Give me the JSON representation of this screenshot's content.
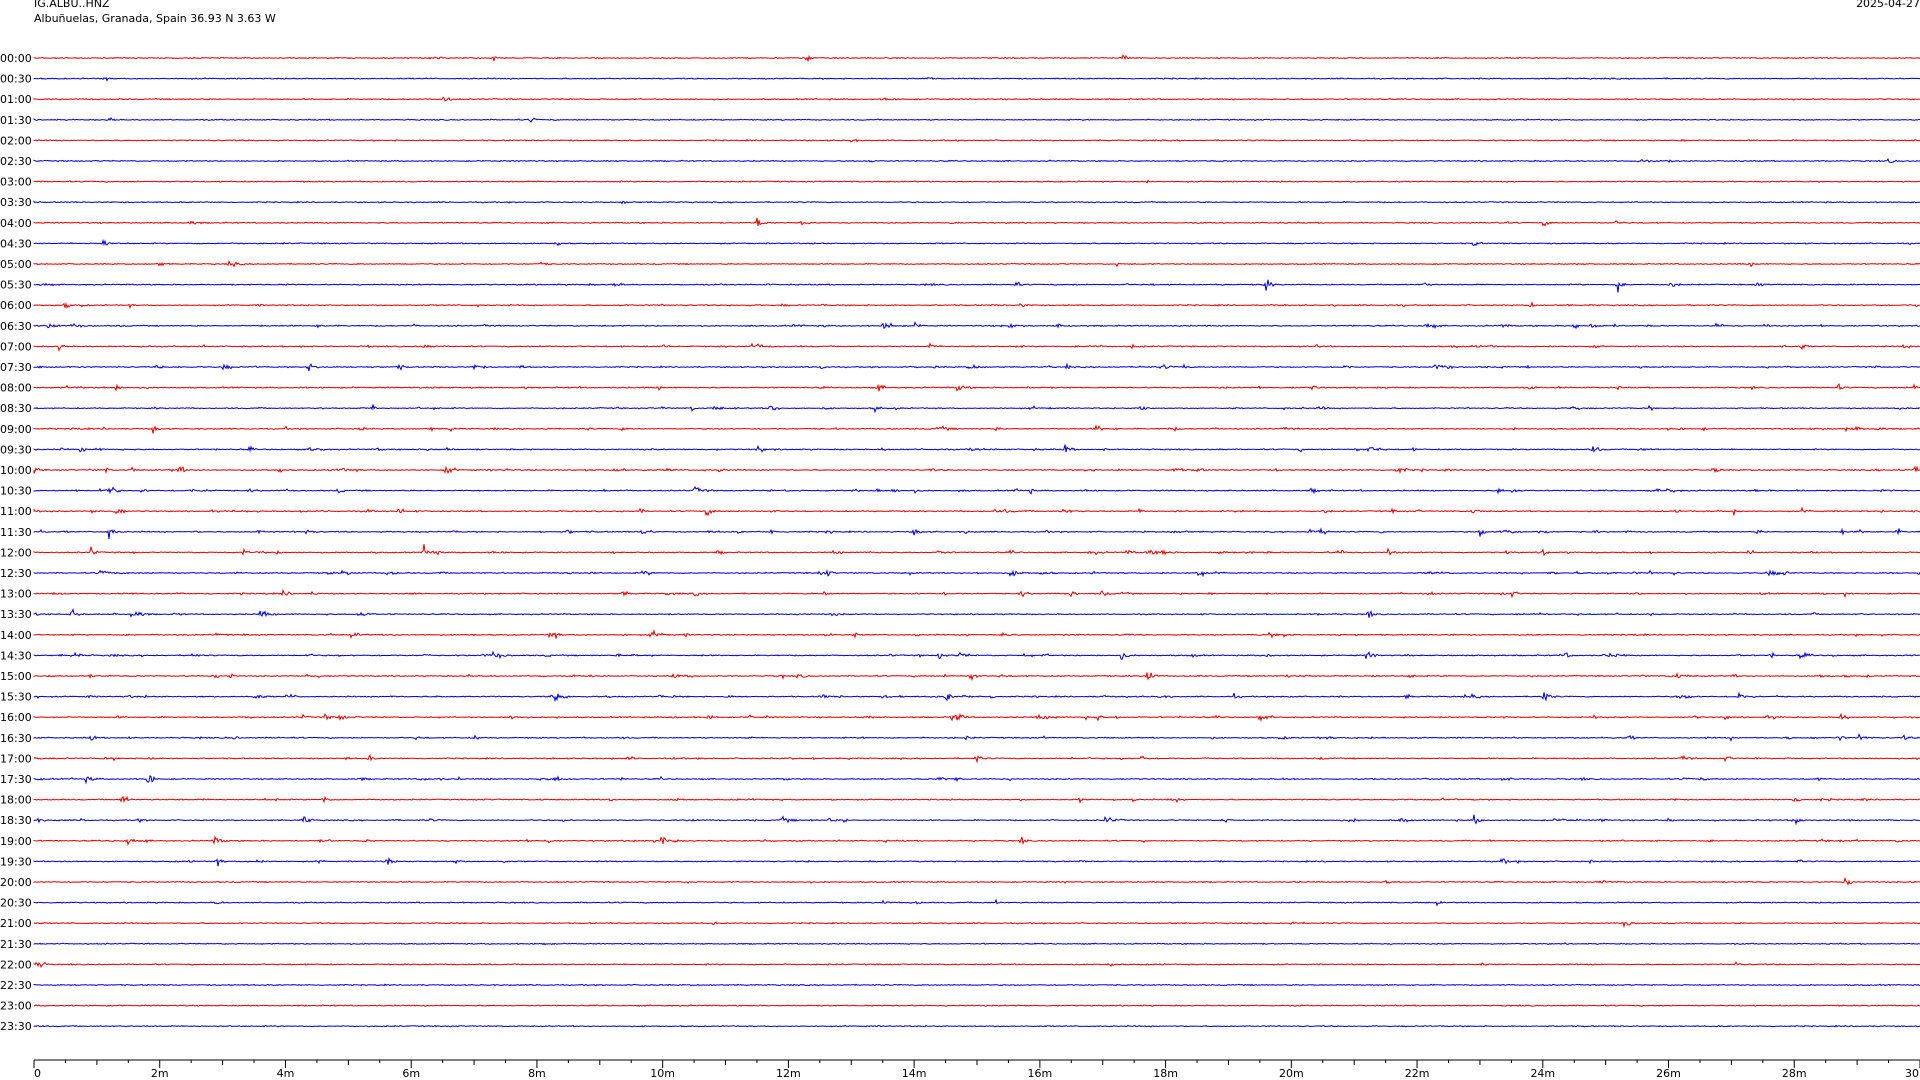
{
  "header": {
    "station_code": "IG.ALBU..HNZ",
    "location": "Albuñuelas, Granada, Spain  36.93 N 3.63 W",
    "date": "2025-04-27"
  },
  "colors": {
    "red": "#e60000",
    "blue": "#0000d2",
    "axis": "#000000"
  },
  "chart_data": {
    "type": "helicorder",
    "row_labels": [
      "00:00",
      "00:30",
      "01:00",
      "01:30",
      "02:00",
      "02:30",
      "03:00",
      "03:30",
      "04:00",
      "04:30",
      "05:00",
      "05:30",
      "06:00",
      "06:30",
      "07:00",
      "07:30",
      "08:00",
      "08:30",
      "09:00",
      "09:30",
      "10:00",
      "10:30",
      "11:00",
      "11:30",
      "12:00",
      "12:30",
      "13:00",
      "13:30",
      "14:00",
      "14:30",
      "15:00",
      "15:30",
      "16:00",
      "16:30",
      "17:00",
      "17:30",
      "18:00",
      "18:30",
      "19:00",
      "19:30",
      "20:00",
      "20:30",
      "21:00",
      "21:30",
      "22:00",
      "22:30",
      "23:00",
      "23:30"
    ],
    "row_colors": [
      "red",
      "blue"
    ],
    "xlim": [
      0,
      30
    ],
    "x_tick_labels": [
      "0",
      "2m",
      "4m",
      "6m",
      "8m",
      "10m",
      "12m",
      "14m",
      "16m",
      "18m",
      "20m",
      "22m",
      "24m",
      "26m",
      "28m",
      "30"
    ],
    "activity": [
      0.1,
      0.1,
      0.1,
      0.1,
      0.1,
      0.1,
      0.1,
      0.1,
      0.2,
      0.25,
      0.25,
      0.35,
      0.5,
      0.6,
      0.6,
      0.65,
      0.65,
      0.7,
      0.7,
      0.7,
      0.75,
      0.8,
      0.8,
      0.8,
      0.75,
      0.7,
      0.65,
      0.6,
      0.65,
      0.7,
      0.8,
      0.8,
      0.75,
      0.65,
      0.6,
      0.6,
      0.6,
      0.65,
      0.65,
      0.5,
      0.3,
      0.2,
      0.15,
      0.1,
      0.1,
      0.08,
      0.05,
      0.05
    ],
    "events": [
      {
        "row": 0,
        "t": 17.3,
        "amp": 0.9
      },
      {
        "row": 0,
        "t": 6.4,
        "amp": 0.5
      },
      {
        "row": 0,
        "t": 7.3,
        "amp": 0.5
      },
      {
        "row": 0,
        "t": 12.3,
        "amp": 0.6
      },
      {
        "row": 1,
        "t": 1.1,
        "amp": 0.5
      },
      {
        "row": 1,
        "t": 14.2,
        "amp": 0.4
      },
      {
        "row": 2,
        "t": 6.5,
        "amp": 0.9
      },
      {
        "row": 3,
        "t": 1.2,
        "amp": 0.6
      },
      {
        "row": 3,
        "t": 7.9,
        "amp": 0.6
      },
      {
        "row": 4,
        "t": 13.0,
        "amp": 0.5
      },
      {
        "row": 5,
        "t": 13.3,
        "amp": 0.4
      },
      {
        "row": 5,
        "t": 26.0,
        "amp": 0.3
      },
      {
        "row": 6,
        "t": 17.7,
        "amp": 0.3
      },
      {
        "row": 8,
        "t": 11.5,
        "amp": 1.0
      },
      {
        "row": 8,
        "t": 12.2,
        "amp": 0.7
      },
      {
        "row": 8,
        "t": 14.6,
        "amp": 0.5
      },
      {
        "row": 9,
        "t": 1.1,
        "amp": 0.9
      },
      {
        "row": 9,
        "t": 22.9,
        "amp": 0.7
      },
      {
        "row": 10,
        "t": 8.1,
        "amp": 0.5
      },
      {
        "row": 10,
        "t": 27.3,
        "amp": 0.4
      },
      {
        "row": 11,
        "t": 19.6,
        "amp": 1.0
      },
      {
        "row": 11,
        "t": 25.2,
        "amp": 1.2
      },
      {
        "row": 11,
        "t": 15.6,
        "amp": 0.6
      },
      {
        "row": 11,
        "t": 27.4,
        "amp": 0.6
      },
      {
        "row": 12,
        "t": 0.5,
        "amp": 0.6
      },
      {
        "row": 12,
        "t": 23.8,
        "amp": 0.6
      },
      {
        "row": 13,
        "t": 15.5,
        "amp": 0.8
      },
      {
        "row": 13,
        "t": 13.6,
        "amp": 0.7
      },
      {
        "row": 13,
        "t": 24.5,
        "amp": 0.7
      },
      {
        "row": 14,
        "t": 0.4,
        "amp": 0.7
      },
      {
        "row": 14,
        "t": 11.5,
        "amp": 0.6
      },
      {
        "row": 14,
        "t": 28.1,
        "amp": 0.6
      },
      {
        "row": 15,
        "t": 12.5,
        "amp": 0.8
      },
      {
        "row": 15,
        "t": 5.8,
        "amp": 0.6
      },
      {
        "row": 16,
        "t": 29.9,
        "amp": 0.6
      },
      {
        "row": 16,
        "t": 1.3,
        "amp": 0.5
      },
      {
        "row": 17,
        "t": 11.7,
        "amp": 1.0
      },
      {
        "row": 17,
        "t": 17.6,
        "amp": 1.0
      },
      {
        "row": 17,
        "t": 5.4,
        "amp": 0.7
      },
      {
        "row": 18,
        "t": 1.9,
        "amp": 0.7
      },
      {
        "row": 18,
        "t": 6.6,
        "amp": 0.6
      },
      {
        "row": 19,
        "t": 4.4,
        "amp": 0.9
      },
      {
        "row": 19,
        "t": 16.4,
        "amp": 0.9
      },
      {
        "row": 19,
        "t": 11.5,
        "amp": 0.8
      },
      {
        "row": 20,
        "t": 2.3,
        "amp": 0.8
      },
      {
        "row": 20,
        "t": 26.7,
        "amp": 0.8
      },
      {
        "row": 20,
        "t": 29.9,
        "amp": 0.6
      },
      {
        "row": 21,
        "t": 1.2,
        "amp": 1.4
      },
      {
        "row": 21,
        "t": 1.7,
        "amp": 0.6
      },
      {
        "row": 22,
        "t": 1.3,
        "amp": 1.3
      },
      {
        "row": 22,
        "t": 5.8,
        "amp": 0.8
      },
      {
        "row": 23,
        "t": 1.2,
        "amp": 1.2
      },
      {
        "row": 23,
        "t": 23.0,
        "amp": 0.8
      },
      {
        "row": 24,
        "t": 6.2,
        "amp": 1.2
      },
      {
        "row": 24,
        "t": 0.9,
        "amp": 0.8
      },
      {
        "row": 24,
        "t": 24.0,
        "amp": 0.7
      },
      {
        "row": 25,
        "t": 18.5,
        "amp": 1.0
      },
      {
        "row": 25,
        "t": 12.6,
        "amp": 0.8
      },
      {
        "row": 26,
        "t": 23.5,
        "amp": 0.8
      },
      {
        "row": 26,
        "t": 16.5,
        "amp": 0.6
      },
      {
        "row": 27,
        "t": 0.6,
        "amp": 1.0
      },
      {
        "row": 27,
        "t": 21.2,
        "amp": 0.9
      },
      {
        "row": 28,
        "t": 8.2,
        "amp": 1.4
      },
      {
        "row": 28,
        "t": 15.4,
        "amp": 0.9
      },
      {
        "row": 28,
        "t": 12.6,
        "amp": 0.8
      },
      {
        "row": 29,
        "t": 17.3,
        "amp": 0.9
      },
      {
        "row": 29,
        "t": 14.4,
        "amp": 0.8
      },
      {
        "row": 30,
        "t": 17.7,
        "amp": 1.4
      },
      {
        "row": 30,
        "t": 14.9,
        "amp": 0.9
      },
      {
        "row": 31,
        "t": 24.0,
        "amp": 1.1
      },
      {
        "row": 31,
        "t": 14.5,
        "amp": 0.9
      },
      {
        "row": 31,
        "t": 27.1,
        "amp": 0.9
      },
      {
        "row": 32,
        "t": 14.7,
        "amp": 1.1
      },
      {
        "row": 32,
        "t": 16.9,
        "amp": 0.8
      },
      {
        "row": 33,
        "t": 0.9,
        "amp": 0.6
      },
      {
        "row": 33,
        "t": 28.7,
        "amp": 0.7
      },
      {
        "row": 34,
        "t": 1.8,
        "amp": 1.0
      },
      {
        "row": 34,
        "t": 15.0,
        "amp": 0.6
      },
      {
        "row": 35,
        "t": 1.8,
        "amp": 1.3
      },
      {
        "row": 35,
        "t": 14.4,
        "amp": 0.8
      },
      {
        "row": 36,
        "t": 1.4,
        "amp": 1.0
      },
      {
        "row": 36,
        "t": 4.6,
        "amp": 0.8
      },
      {
        "row": 36,
        "t": 28.0,
        "amp": 0.8
      },
      {
        "row": 37,
        "t": 4.3,
        "amp": 0.9
      },
      {
        "row": 37,
        "t": 28.0,
        "amp": 1.0
      },
      {
        "row": 37,
        "t": 22.9,
        "amp": 0.9
      },
      {
        "row": 38,
        "t": 1.5,
        "amp": 1.0
      },
      {
        "row": 38,
        "t": 10.0,
        "amp": 1.0
      },
      {
        "row": 38,
        "t": 15.7,
        "amp": 0.7
      },
      {
        "row": 39,
        "t": 5.6,
        "amp": 1.0
      },
      {
        "row": 39,
        "t": 2.9,
        "amp": 0.8
      },
      {
        "row": 40,
        "t": 28.8,
        "amp": 0.9
      },
      {
        "row": 40,
        "t": 21.5,
        "amp": 0.4
      },
      {
        "row": 41,
        "t": 2.9,
        "amp": 0.6
      },
      {
        "row": 41,
        "t": 15.3,
        "amp": 0.4
      },
      {
        "row": 42,
        "t": 25.3,
        "amp": 0.9
      },
      {
        "row": 42,
        "t": 10.8,
        "amp": 0.3
      },
      {
        "row": 43,
        "t": 8.1,
        "amp": 0.4
      },
      {
        "row": 44,
        "t": 0.05,
        "amp": 1.2
      },
      {
        "row": 44,
        "t": 17.1,
        "amp": 0.4
      }
    ]
  }
}
